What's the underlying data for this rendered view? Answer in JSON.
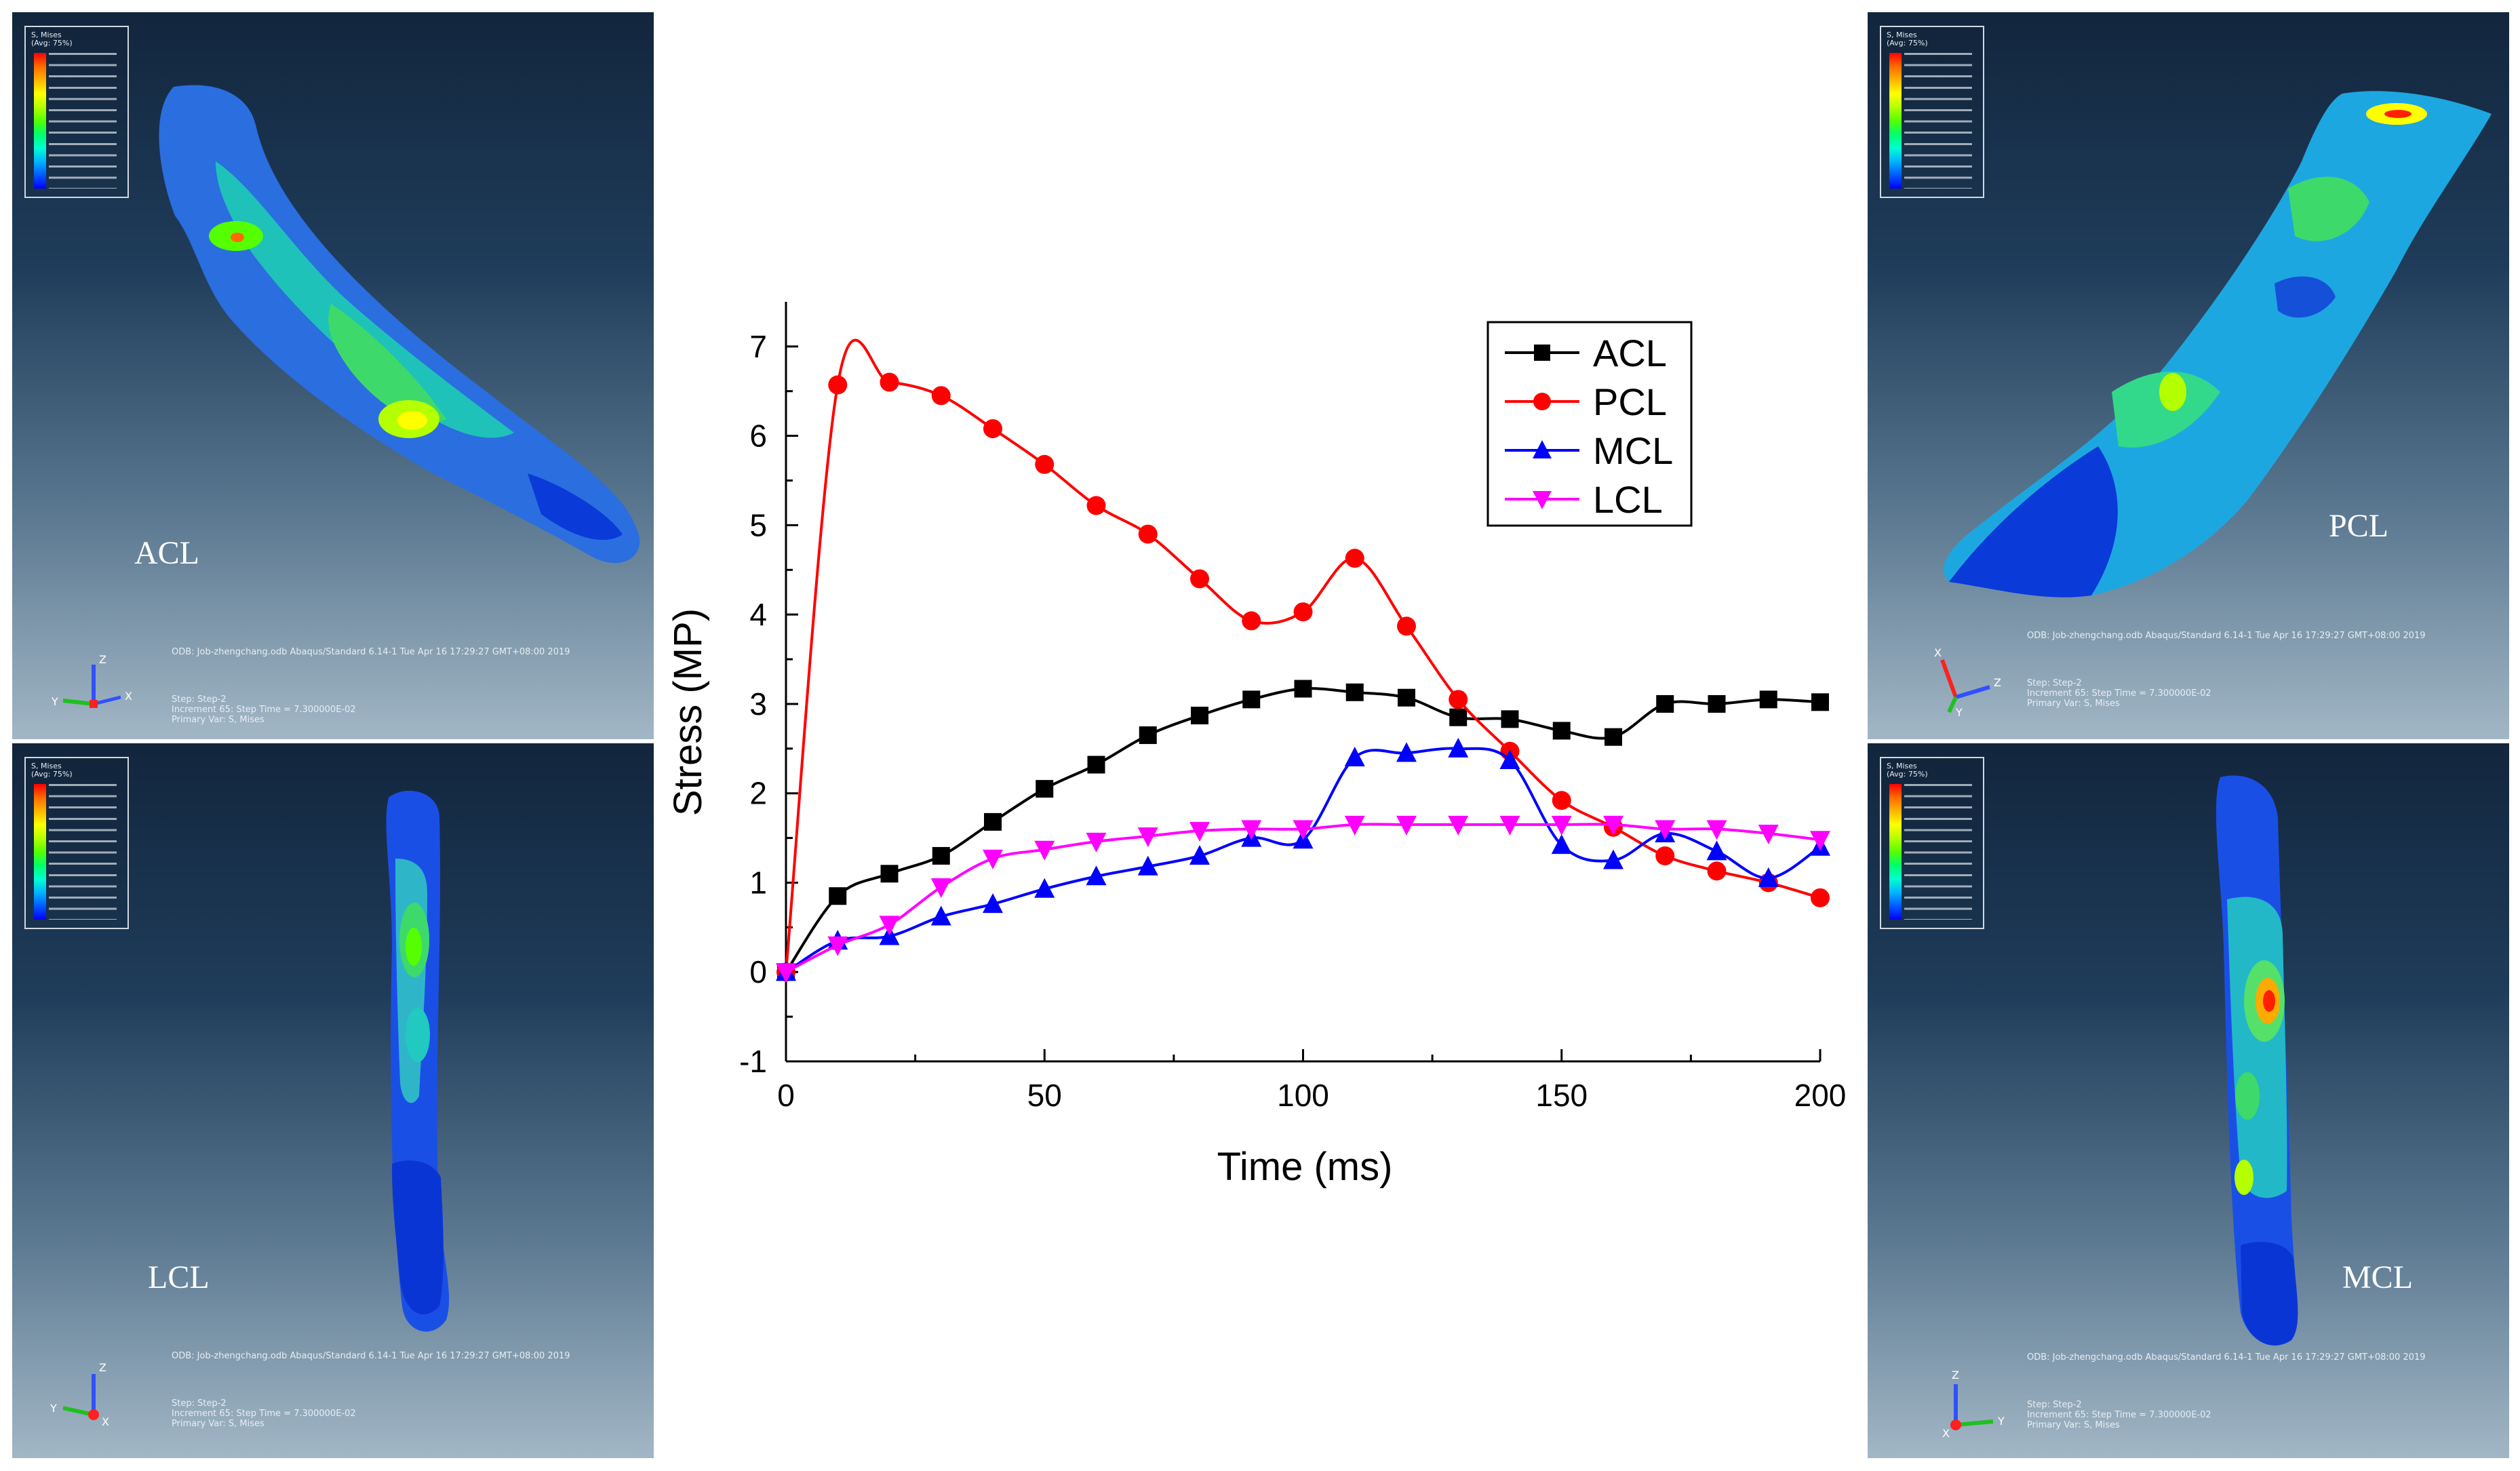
{
  "panels": {
    "acl": {
      "label": "ACL",
      "legend_title_1": "S, Mises",
      "legend_title_2": "(Avg: 75%)",
      "odb_line": "ODB: Job-zhengchang.odb    Abaqus/Standard 6.14-1    Tue Apr 16 17:29:27 GMT+08:00 2019",
      "step_line": "Step: Step-2",
      "increment_line": "Increment     65: Step Time =    7.300000E-02",
      "primary_line": "Primary Var: S, Mises"
    },
    "lcl": {
      "label": "LCL",
      "legend_title_1": "S, Mises",
      "legend_title_2": "(Avg: 75%)",
      "odb_line": "ODB: Job-zhengchang.odb    Abaqus/Standard 6.14-1    Tue Apr 16 17:29:27 GMT+08:00 2019",
      "step_line": "Step: Step-2",
      "increment_line": "Increment     65: Step Time =    7.300000E-02",
      "primary_line": "Primary Var: S, Mises"
    },
    "pcl": {
      "label": "PCL",
      "legend_title_1": "S, Mises",
      "legend_title_2": "(Avg: 75%)",
      "odb_line": "ODB: Job-zhengchang.odb    Abaqus/Standard 6.14-1    Tue Apr 16 17:29:27 GMT+08:00 2019",
      "step_line": "Step: Step-2",
      "increment_line": "Increment     65: Step Time =    7.300000E-02",
      "primary_line": "Primary Var: S, Mises"
    },
    "mcl": {
      "label": "MCL",
      "legend_title_1": "S, Mises",
      "legend_title_2": "(Avg: 75%)",
      "odb_line": "ODB: Job-zhengchang.odb    Abaqus/Standard 6.14-1    Tue Apr 16 17:29:27 GMT+08:00 2019",
      "step_line": "Step: Step-2",
      "increment_line": "Increment     65: Step Time =    7.300000E-02",
      "primary_line": "Primary Var: S, Mises"
    }
  },
  "axis_labels": {
    "x": "X",
    "y": "Y",
    "z": "Z"
  },
  "chart_data": {
    "type": "line",
    "title": "",
    "xlabel": "Time (ms)",
    "ylabel": "Stress (MP)",
    "xlim": [
      0,
      200
    ],
    "ylim": [
      -1,
      7.5
    ],
    "xticks": [
      0,
      50,
      100,
      150,
      200
    ],
    "yticks": [
      -1,
      0,
      1,
      2,
      3,
      4,
      5,
      6,
      7
    ],
    "legend_position": "top-right",
    "x": [
      0,
      10,
      20,
      30,
      40,
      50,
      60,
      70,
      80,
      90,
      100,
      110,
      120,
      130,
      140,
      150,
      160,
      170,
      180,
      190,
      200
    ],
    "series": [
      {
        "name": "ACL",
        "color": "#000000",
        "marker": "square",
        "values": [
          0,
          0.85,
          1.1,
          1.3,
          1.68,
          2.05,
          2.32,
          2.65,
          2.87,
          3.05,
          3.17,
          3.13,
          3.07,
          2.85,
          2.83,
          2.7,
          2.63,
          3.0,
          3.0,
          3.05,
          3.02
        ]
      },
      {
        "name": "PCL",
        "color": "#ff0000",
        "marker": "circle",
        "values": [
          0,
          6.57,
          6.6,
          6.45,
          6.08,
          5.68,
          5.22,
          4.9,
          4.4,
          3.93,
          4.03,
          4.63,
          3.87,
          3.05,
          2.47,
          1.92,
          1.62,
          1.3,
          1.13,
          1.0,
          0.83
        ]
      },
      {
        "name": "MCL",
        "color": "#0000ff",
        "marker": "triangle-up",
        "values": [
          0,
          0.35,
          0.4,
          0.62,
          0.76,
          0.93,
          1.07,
          1.18,
          1.3,
          1.5,
          1.48,
          2.4,
          2.45,
          2.5,
          2.37,
          1.42,
          1.25,
          1.55,
          1.35,
          1.05,
          1.4
        ]
      },
      {
        "name": "LCL",
        "color": "#ff00ff",
        "marker": "triangle-down",
        "values": [
          0,
          0.3,
          0.53,
          0.95,
          1.27,
          1.37,
          1.46,
          1.52,
          1.58,
          1.6,
          1.6,
          1.65,
          1.65,
          1.65,
          1.65,
          1.65,
          1.65,
          1.6,
          1.6,
          1.55,
          1.48
        ]
      }
    ]
  }
}
